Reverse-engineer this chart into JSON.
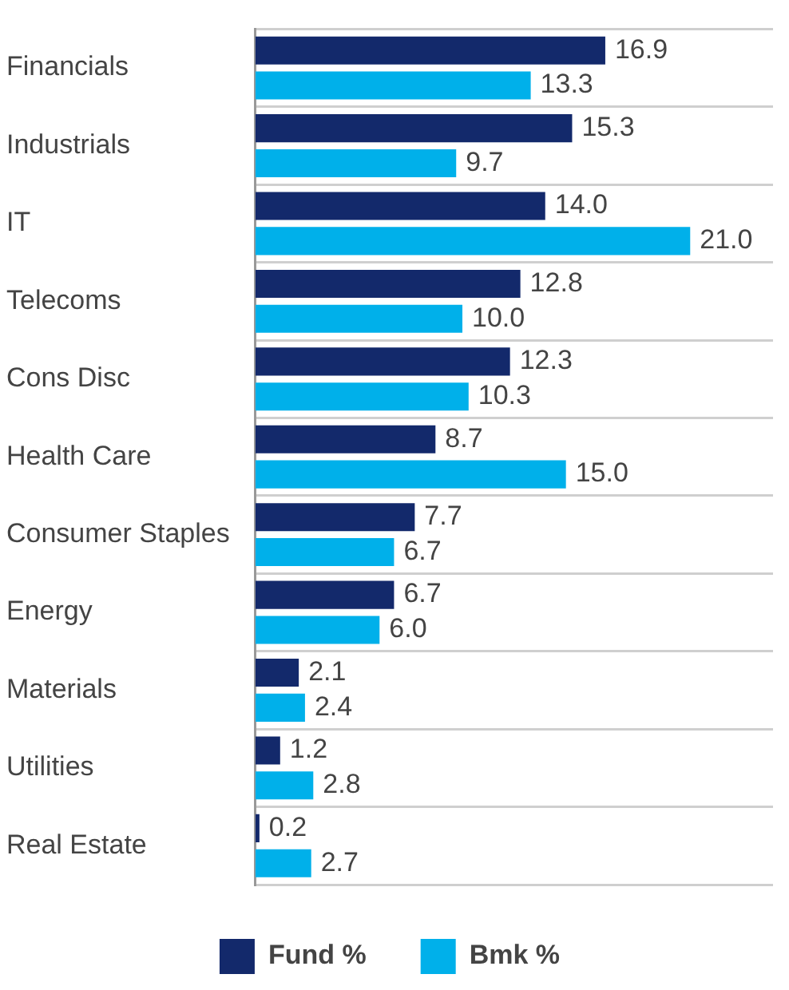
{
  "chart_data": {
    "type": "bar",
    "orientation": "horizontal",
    "categories": [
      "Financials",
      "Industrials",
      "IT",
      "Telecoms",
      "Cons Disc",
      "Health Care",
      "Consumer Staples",
      "Energy",
      "Materials",
      "Utilities",
      "Real Estate"
    ],
    "series": [
      {
        "name": "Fund %",
        "color": "#13296b",
        "values": [
          16.9,
          15.3,
          14.0,
          12.8,
          12.3,
          8.7,
          7.7,
          6.7,
          2.1,
          1.2,
          0.2
        ],
        "value_labels": [
          "16.9",
          "15.3",
          "14.0",
          "12.8",
          "12.3",
          "8.7",
          "7.7",
          "6.7",
          "2.1",
          "1.2",
          "0.2"
        ]
      },
      {
        "name": "Bmk %",
        "color": "#00b0ea",
        "values": [
          13.3,
          9.7,
          21.0,
          10.0,
          10.3,
          15.0,
          6.7,
          6.0,
          2.4,
          2.8,
          2.7
        ],
        "value_labels": [
          "13.3",
          "9.7",
          "21.0",
          "10.0",
          "10.3",
          "15.0",
          "6.7",
          "6.0",
          "2.4",
          "2.8",
          "2.7"
        ]
      }
    ],
    "grid": "y",
    "legend": "bottom",
    "tick_labels": "y"
  }
}
